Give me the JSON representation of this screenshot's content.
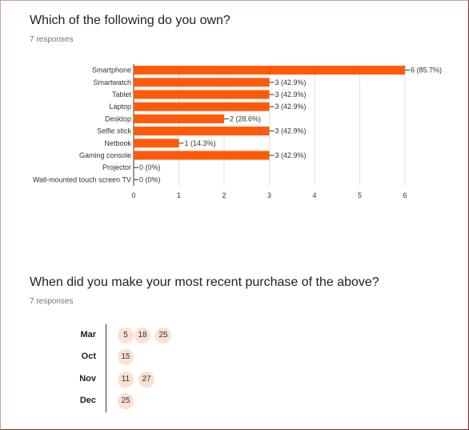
{
  "q1": {
    "title": "Which of the following do you own?",
    "responses": "7 responses"
  },
  "q2": {
    "title": "When did you make your most recent purchase of the above?",
    "responses": "7 responses"
  },
  "colors": {
    "bar": "#ff5a0a",
    "chip": "#fbe0d4"
  },
  "chart_data": [
    {
      "type": "bar",
      "orientation": "horizontal",
      "categories": [
        "Smartphone",
        "Smartwatch",
        "Tablet",
        "Laptop",
        "Desktop",
        "Selfie stick",
        "Netbook",
        "Gaming console",
        "Projector",
        "Wall-mounted touch screen TV"
      ],
      "values": [
        6,
        3,
        3,
        3,
        2,
        3,
        1,
        3,
        0,
        0
      ],
      "data_labels": [
        "6 (85.7%)",
        "3 (42.9%)",
        "3 (42.9%)",
        "3 (42.9%)",
        "2 (28.6%)",
        "3 (42.9%)",
        "1 (14.3%)",
        "3 (42.9%)",
        "0 (0%)",
        "0 (0%)"
      ],
      "xlim": [
        0,
        6
      ],
      "xticks": [
        "0",
        "1",
        "2",
        "3",
        "4",
        "5",
        "6"
      ],
      "grid": true
    },
    {
      "type": "table",
      "rows": [
        {
          "month": "Mar",
          "days": [
            "5",
            "18",
            "25"
          ]
        },
        {
          "month": "Oct",
          "days": [
            "15"
          ]
        },
        {
          "month": "Nov",
          "days": [
            "11",
            "27"
          ]
        },
        {
          "month": "Dec",
          "days": [
            "25"
          ]
        }
      ]
    }
  ]
}
